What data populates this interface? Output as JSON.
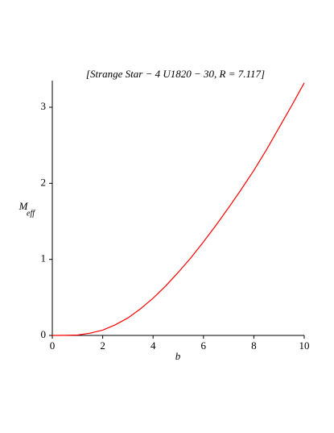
{
  "chart_data": {
    "type": "line",
    "title": "[Strange Star − 4 U1820 − 30, R = 7.117]",
    "xlabel": "b",
    "ylabel": "M",
    "ylabel_subscript": "eff",
    "x": [
      0,
      0.5,
      1,
      1.5,
      2,
      2.5,
      3,
      3.5,
      4,
      4.5,
      5,
      5.5,
      6,
      6.5,
      7,
      7.5,
      8,
      8.5,
      9,
      9.5,
      10
    ],
    "series": [
      {
        "name": "M_eff",
        "color": "#ff0000",
        "values": [
          0,
          0.001,
          0.005,
          0.03,
          0.07,
          0.14,
          0.23,
          0.35,
          0.49,
          0.65,
          0.83,
          1.02,
          1.23,
          1.45,
          1.68,
          1.92,
          2.17,
          2.44,
          2.73,
          3.02,
          3.32
        ]
      }
    ],
    "xlim": [
      0,
      10
    ],
    "xticks": [
      0,
      2,
      4,
      6,
      8,
      10
    ],
    "ylim": [
      0,
      3.35
    ],
    "yticks": [
      0,
      1,
      2,
      3
    ]
  }
}
